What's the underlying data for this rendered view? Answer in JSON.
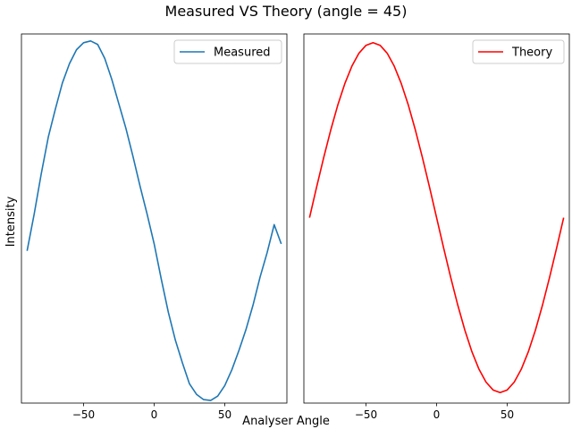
{
  "figure": {
    "title": "Measured VS Theory (angle = 45)",
    "xlabel": "Analyser Angle",
    "ylabel": "Intensity"
  },
  "chart_data": [
    {
      "type": "line",
      "xlabel": "Analyser Angle",
      "ylabel": "Intensity",
      "xlim": [
        -94,
        94
      ],
      "ylim": [
        -1.06,
        1.05
      ],
      "xticks": [
        -50,
        0,
        50
      ],
      "yticks": [],
      "legend": "top-right",
      "grid": false,
      "series": [
        {
          "name": "Measured",
          "color": "#1f77b4",
          "x": [
            -90,
            -85,
            -80,
            -75,
            -70,
            -65,
            -60,
            -55,
            -50,
            -45,
            -40,
            -35,
            -30,
            -25,
            -20,
            -15,
            -10,
            -5,
            0,
            5,
            10,
            15,
            20,
            25,
            30,
            35,
            40,
            45,
            50,
            55,
            60,
            65,
            70,
            75,
            80,
            85,
            90
          ],
          "y": [
            -0.19,
            0.02,
            0.25,
            0.46,
            0.62,
            0.77,
            0.88,
            0.96,
            1.0,
            1.01,
            0.99,
            0.91,
            0.79,
            0.65,
            0.51,
            0.35,
            0.18,
            0.02,
            -0.15,
            -0.35,
            -0.54,
            -0.7,
            -0.83,
            -0.95,
            -1.01,
            -1.04,
            -1.045,
            -1.02,
            -0.96,
            -0.87,
            -0.76,
            -0.64,
            -0.5,
            -0.34,
            -0.2,
            -0.04,
            -0.15
          ]
        }
      ]
    },
    {
      "type": "line",
      "xlim": [
        -94,
        94
      ],
      "ylim": [
        -1.06,
        1.05
      ],
      "xticks": [
        -50,
        0,
        50
      ],
      "yticks": [],
      "legend": "top-right",
      "grid": false,
      "series": [
        {
          "name": "Theory",
          "color": "#ff0000",
          "x": [
            -90,
            -85,
            -80,
            -75,
            -70,
            -65,
            -60,
            -55,
            -50,
            -45,
            -40,
            -35,
            -30,
            -25,
            -20,
            -15,
            -10,
            -5,
            0,
            5,
            10,
            15,
            20,
            25,
            30,
            35,
            40,
            45,
            50,
            55,
            60,
            65,
            70,
            75,
            80,
            85,
            90
          ],
          "y": [
            0.0,
            0.174,
            0.342,
            0.5,
            0.643,
            0.766,
            0.866,
            0.94,
            0.985,
            1.0,
            0.985,
            0.94,
            0.866,
            0.766,
            0.643,
            0.5,
            0.342,
            0.174,
            0.0,
            -0.174,
            -0.342,
            -0.5,
            -0.643,
            -0.766,
            -0.866,
            -0.94,
            -0.985,
            -1.0,
            -0.985,
            -0.94,
            -0.866,
            -0.766,
            -0.643,
            -0.5,
            -0.342,
            -0.174,
            0.0
          ]
        }
      ]
    }
  ]
}
